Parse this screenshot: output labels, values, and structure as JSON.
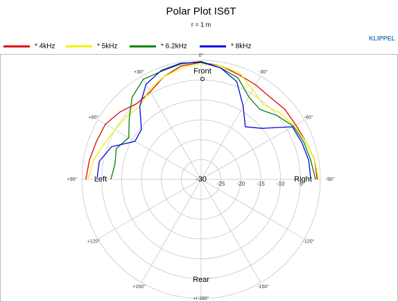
{
  "chart_data": {
    "type": "polar",
    "title": "Polar Plot IS6T",
    "subtitle": "r = 1 m",
    "brand": "KLIPPEL",
    "annotations": [
      "Front",
      "Left",
      "Right",
      "Rear"
    ],
    "angles": [
      90,
      80,
      70,
      60,
      50,
      40,
      30,
      20,
      10,
      0,
      -10,
      -20,
      -30,
      -40,
      -50,
      -60,
      -70,
      -80,
      -90
    ],
    "series": [
      {
        "name": "* 4kHz",
        "color": "#e00000",
        "values": [
          -1,
          -1.5,
          -2,
          -2.2,
          -3.5,
          -5,
          -4.5,
          -2.5,
          -1,
          -0.5,
          -1,
          -2,
          -2.5,
          -3,
          -2.5,
          -2.5,
          -2,
          -1,
          -0.8
        ]
      },
      {
        "name": "* 5kHz",
        "color": "#f0f000",
        "values": [
          -1.5,
          -2.5,
          -4,
          -5,
          -5.5,
          -6,
          -4,
          -2.5,
          -1.5,
          -0.8,
          -1,
          -1.5,
          -4,
          -5.5,
          -4,
          -3,
          -2,
          -1,
          -0.5
        ]
      },
      {
        "name": "* 6.2kHz",
        "color": "#008000",
        "values": [
          -7.3,
          -8,
          -7.3,
          -9,
          -6.4,
          -3,
          -0.9,
          -1,
          -0.5,
          -0.3,
          -1.5,
          -2.8,
          -6,
          -7,
          -5,
          -3.2,
          -2.5,
          -2,
          -1.2
        ]
      },
      {
        "name": "* 8kHz",
        "color": "#0000e0",
        "values": [
          -3.8,
          -4,
          -6,
          -10.8,
          -10.4,
          -6,
          -2.3,
          -0.8,
          -0.3,
          -0.5,
          -1.5,
          -3.8,
          -8.8,
          -12.7,
          -10,
          -3.5,
          -3,
          -2.5,
          -2.4
        ]
      }
    ],
    "rlim": [
      -30,
      0
    ],
    "rticks": [
      -30,
      -25,
      -20,
      -15,
      -10,
      -5
    ],
    "angle_ticks": [
      {
        "value": 0,
        "label": "0°"
      },
      {
        "value": 30,
        "label": "+30°"
      },
      {
        "value": -30,
        "label": "-30°"
      },
      {
        "value": 60,
        "label": "+60°"
      },
      {
        "value": -60,
        "label": "-60°"
      },
      {
        "value": 90,
        "label": "+90°"
      },
      {
        "value": -90,
        "label": "-90°"
      },
      {
        "value": 120,
        "label": "+120°"
      },
      {
        "value": -120,
        "label": "-120°"
      },
      {
        "value": 150,
        "label": "+150°"
      },
      {
        "value": -150,
        "label": "-150°"
      },
      {
        "value": 180,
        "label": "+/-180°"
      }
    ],
    "grid": true
  }
}
